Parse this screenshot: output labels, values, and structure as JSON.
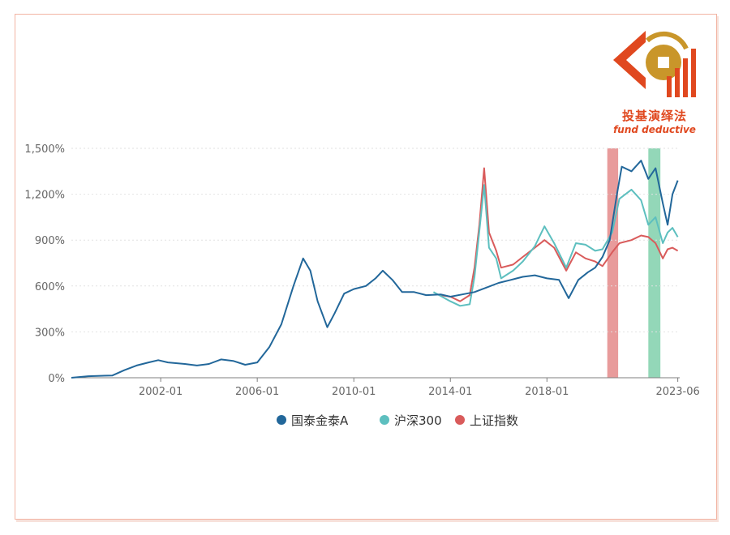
{
  "logo": {
    "cn_text": "投基演绎法",
    "en_text": "fund deductive",
    "colors": {
      "primary": "#e0481f",
      "gold": "#c9962a"
    }
  },
  "chart_data": {
    "type": "line",
    "title": "",
    "xlabel": "",
    "ylabel": "",
    "y_unit": "%",
    "ylim": [
      0,
      1500
    ],
    "y_ticks": [
      0,
      300,
      600,
      900,
      1200,
      1500
    ],
    "y_tick_labels": [
      "0%",
      "300%",
      "600%",
      "900%",
      "1,200%",
      "1,500%"
    ],
    "x_range": [
      1998.3,
      2023.5
    ],
    "x_ticks": [
      2002.0,
      2006.0,
      2010.0,
      2014.0,
      2018.0,
      2023.42
    ],
    "x_tick_labels": [
      "2002-01",
      "2006-01",
      "2010-01",
      "2014-01",
      "2018-01",
      "2023-06"
    ],
    "grid": "horizontal-dotted",
    "legend_position": "bottom",
    "shaded_regions": [
      {
        "x_start": 2020.5,
        "x_end": 2020.95,
        "color": "#e07a7a"
      },
      {
        "x_start": 2022.2,
        "x_end": 2022.7,
        "color": "#6fcaa0"
      }
    ],
    "series": [
      {
        "name": "国泰金泰A",
        "color": "#22679a",
        "points": [
          [
            1998.3,
            0
          ],
          [
            1999.0,
            10
          ],
          [
            2000.0,
            15
          ],
          [
            2000.5,
            50
          ],
          [
            2001.0,
            80
          ],
          [
            2001.5,
            100
          ],
          [
            2001.9,
            115
          ],
          [
            2002.3,
            100
          ],
          [
            2003.0,
            90
          ],
          [
            2003.5,
            80
          ],
          [
            2004.0,
            90
          ],
          [
            2004.5,
            120
          ],
          [
            2005.0,
            110
          ],
          [
            2005.5,
            85
          ],
          [
            2006.0,
            100
          ],
          [
            2006.5,
            200
          ],
          [
            2007.0,
            350
          ],
          [
            2007.5,
            600
          ],
          [
            2007.9,
            780
          ],
          [
            2008.2,
            700
          ],
          [
            2008.5,
            500
          ],
          [
            2008.9,
            330
          ],
          [
            2009.2,
            420
          ],
          [
            2009.6,
            550
          ],
          [
            2010.0,
            580
          ],
          [
            2010.5,
            600
          ],
          [
            2010.9,
            650
          ],
          [
            2011.2,
            700
          ],
          [
            2011.6,
            640
          ],
          [
            2012.0,
            560
          ],
          [
            2012.5,
            560
          ],
          [
            2013.0,
            540
          ],
          [
            2013.6,
            545
          ],
          [
            2014.0,
            530
          ],
          [
            2014.5,
            545
          ],
          [
            2015.0,
            560
          ],
          [
            2015.5,
            590
          ],
          [
            2016.0,
            620
          ],
          [
            2016.5,
            640
          ],
          [
            2017.0,
            660
          ],
          [
            2017.5,
            670
          ],
          [
            2018.0,
            650
          ],
          [
            2018.5,
            640
          ],
          [
            2018.9,
            520
          ],
          [
            2019.3,
            640
          ],
          [
            2019.7,
            690
          ],
          [
            2020.0,
            720
          ],
          [
            2020.3,
            790
          ],
          [
            2020.6,
            900
          ],
          [
            2020.9,
            1200
          ],
          [
            2021.1,
            1380
          ],
          [
            2021.5,
            1350
          ],
          [
            2021.9,
            1420
          ],
          [
            2022.2,
            1300
          ],
          [
            2022.5,
            1370
          ],
          [
            2022.8,
            1140
          ],
          [
            2023.0,
            1000
          ],
          [
            2023.2,
            1200
          ],
          [
            2023.42,
            1290
          ]
        ]
      },
      {
        "name": "沪深300",
        "color": "#5dbfbf",
        "points": [
          [
            2013.3,
            560
          ],
          [
            2014.0,
            500
          ],
          [
            2014.4,
            470
          ],
          [
            2014.8,
            480
          ],
          [
            2015.0,
            660
          ],
          [
            2015.2,
            960
          ],
          [
            2015.4,
            1260
          ],
          [
            2015.6,
            850
          ],
          [
            2015.9,
            780
          ],
          [
            2016.1,
            650
          ],
          [
            2016.6,
            700
          ],
          [
            2017.0,
            760
          ],
          [
            2017.5,
            860
          ],
          [
            2017.9,
            990
          ],
          [
            2018.3,
            880
          ],
          [
            2018.8,
            720
          ],
          [
            2019.2,
            880
          ],
          [
            2019.6,
            870
          ],
          [
            2020.0,
            830
          ],
          [
            2020.3,
            840
          ],
          [
            2020.7,
            950
          ],
          [
            2021.0,
            1170
          ],
          [
            2021.5,
            1230
          ],
          [
            2021.9,
            1160
          ],
          [
            2022.2,
            1000
          ],
          [
            2022.5,
            1050
          ],
          [
            2022.8,
            880
          ],
          [
            2023.0,
            950
          ],
          [
            2023.2,
            980
          ],
          [
            2023.42,
            920
          ]
        ]
      },
      {
        "name": "上证指数",
        "color": "#d95b5b",
        "points": [
          [
            2013.6,
            540
          ],
          [
            2014.0,
            530
          ],
          [
            2014.4,
            500
          ],
          [
            2014.8,
            540
          ],
          [
            2015.0,
            720
          ],
          [
            2015.2,
            1000
          ],
          [
            2015.4,
            1370
          ],
          [
            2015.6,
            950
          ],
          [
            2015.9,
            830
          ],
          [
            2016.1,
            720
          ],
          [
            2016.6,
            740
          ],
          [
            2017.0,
            790
          ],
          [
            2017.5,
            850
          ],
          [
            2017.9,
            900
          ],
          [
            2018.3,
            850
          ],
          [
            2018.8,
            700
          ],
          [
            2019.2,
            820
          ],
          [
            2019.6,
            780
          ],
          [
            2020.0,
            760
          ],
          [
            2020.3,
            730
          ],
          [
            2020.7,
            820
          ],
          [
            2021.0,
            880
          ],
          [
            2021.5,
            900
          ],
          [
            2021.9,
            930
          ],
          [
            2022.2,
            920
          ],
          [
            2022.5,
            880
          ],
          [
            2022.8,
            780
          ],
          [
            2023.0,
            840
          ],
          [
            2023.2,
            850
          ],
          [
            2023.42,
            830
          ]
        ]
      }
    ]
  }
}
